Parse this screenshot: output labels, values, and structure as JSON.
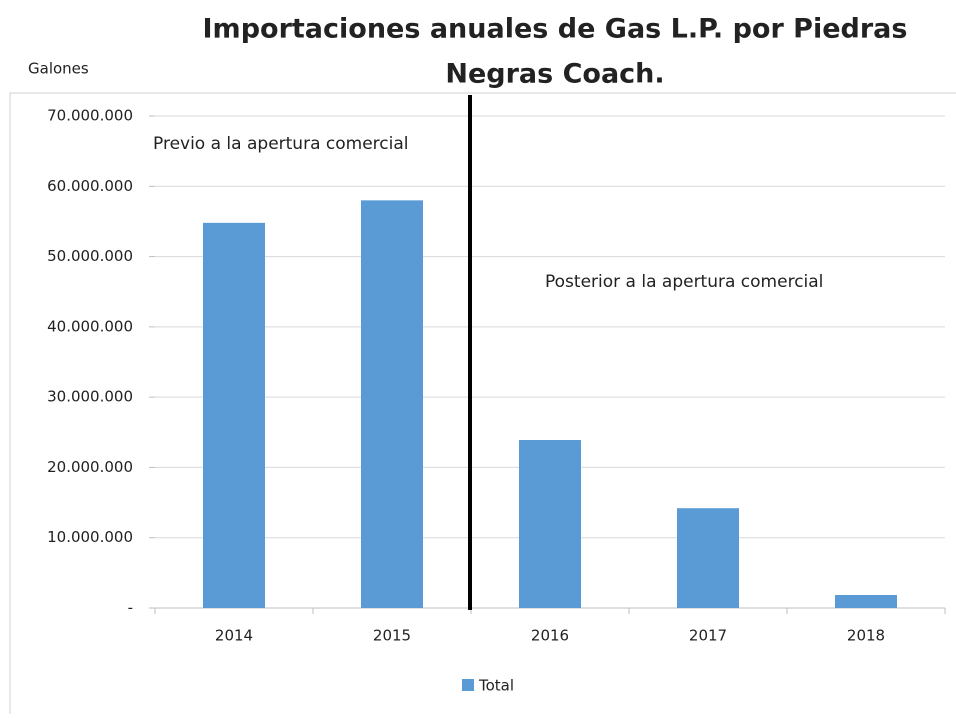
{
  "chart_data": {
    "type": "bar",
    "title": "Importaciones anuales de Gas L.P. por Piedras Negras Coach.",
    "y_label": "Galones",
    "categories": [
      "2014",
      "2015",
      "2016",
      "2017",
      "2018"
    ],
    "series": [
      {
        "name": "Total",
        "color": "#5b9bd5",
        "values": [
          54800000,
          58000000,
          23900000,
          14200000,
          1850000
        ]
      }
    ],
    "annotations": [
      "Previo a la apertura comercial",
      "Posterior a la apertura comercial"
    ],
    "ylim": [
      0,
      70000000
    ],
    "yticks": [
      {
        "value": 0,
        "label": "-"
      },
      {
        "value": 10000000,
        "label": "10.000.000"
      },
      {
        "value": 20000000,
        "label": "20.000.000"
      },
      {
        "value": 30000000,
        "label": "30.000.000"
      },
      {
        "value": 40000000,
        "label": "40.000.000"
      },
      {
        "value": 50000000,
        "label": "50.000.000"
      },
      {
        "value": 60000000,
        "label": "60.000.000"
      },
      {
        "value": 70000000,
        "label": "70.000.000"
      }
    ],
    "grid": true,
    "legend": "bottom"
  }
}
